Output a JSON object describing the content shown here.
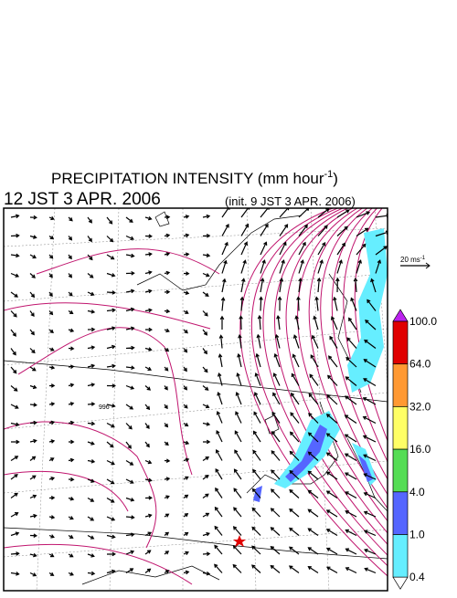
{
  "header": {
    "title": "PRECIPITATION INTENSITY (mm hour",
    "title_exponent": "-1",
    "title_end": ")",
    "valid_time": "12 JST 3 APR. 2006",
    "init_time": "(init. 9 JST 3 APR. 2006)"
  },
  "wind_reference": {
    "label": "20 ms",
    "exponent": "-1"
  },
  "map": {
    "contour_label": "996"
  },
  "colorbar": {
    "labels": [
      "100.0",
      "64.0",
      "32.0",
      "16.0",
      "4.0",
      "1.0",
      "0.4"
    ],
    "colors": [
      "#bb22ee",
      "#e00000",
      "#ff9933",
      "#ffff66",
      "#55dd55",
      "#5566ff",
      "#66eeff",
      "#ffffff"
    ]
  }
}
